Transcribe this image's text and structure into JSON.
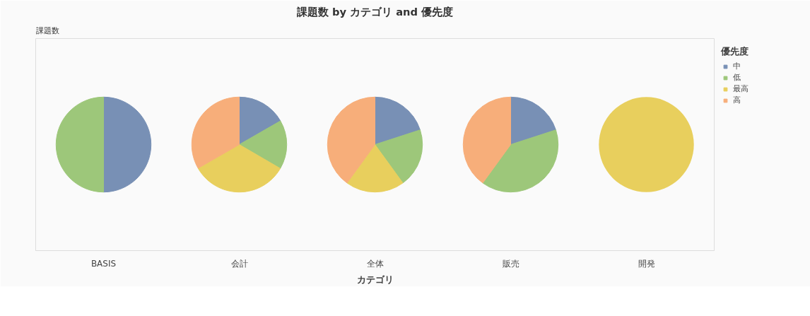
{
  "chart_data": {
    "type": "pie",
    "title": "課題数 by カテゴリ and 優先度",
    "ylabel": "課題数",
    "xlabel": "カテゴリ",
    "legend_title": "優先度",
    "legend": "top right",
    "categories": [
      "中",
      "低",
      "最高",
      "高"
    ],
    "colors": [
      "#7890b5",
      "#9dc77a",
      "#e8cf5d",
      "#f7ae7a"
    ],
    "series": [
      {
        "name": "BASIS",
        "values": [
          50,
          50,
          0,
          0
        ]
      },
      {
        "name": "会計",
        "values": [
          16.7,
          16.7,
          33.3,
          33.3
        ]
      },
      {
        "name": "全体",
        "values": [
          20,
          20,
          20,
          40
        ]
      },
      {
        "name": "販売",
        "values": [
          20,
          40,
          0,
          40
        ]
      },
      {
        "name": "開発",
        "values": [
          0,
          0,
          100,
          0
        ]
      }
    ]
  }
}
